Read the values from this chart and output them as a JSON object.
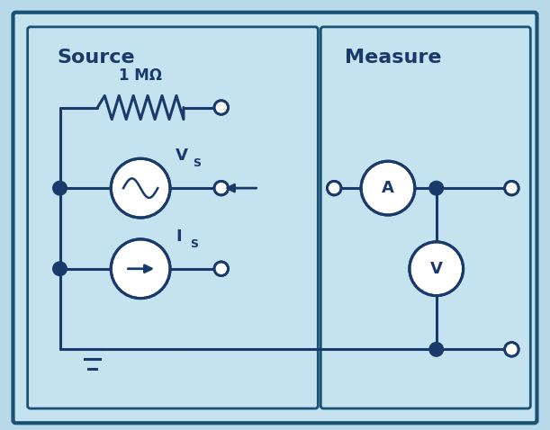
{
  "bg_color": "#b8d9e8",
  "box_bg": "#c5e3ef",
  "box_edge": "#1a5276",
  "line_color": "#1a3a6b",
  "circle_bg": "#ffffff",
  "title_color": "#1a3a6b",
  "source_label": "Source",
  "measure_label": "Measure",
  "resistor_label": "1 MΩ",
  "vs_label": "V",
  "vs_sub": "S",
  "is_label": "I",
  "is_sub": "S",
  "ammeter_label": "A",
  "voltmeter_label": "V",
  "figsize": [
    6.11,
    4.78
  ],
  "dpi": 100
}
